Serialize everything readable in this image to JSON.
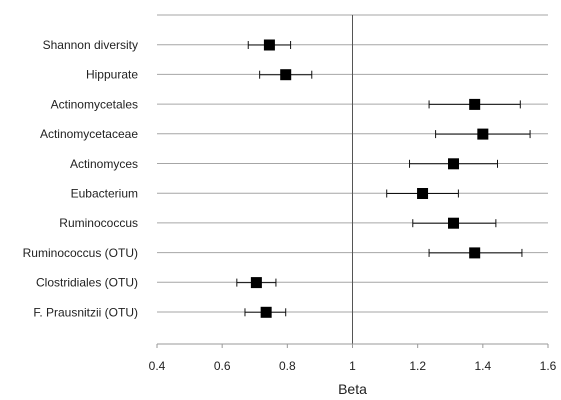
{
  "chart_data": {
    "type": "forest",
    "title": "",
    "xlabel": "Beta",
    "ylabel": "",
    "xlim": [
      0.4,
      1.6
    ],
    "x_ticks": [
      "0.4",
      "0.6",
      "0.8",
      "1",
      "1.2",
      "1.4",
      "1.6"
    ],
    "reference_line": 1,
    "grid": "horizontal",
    "categories": [
      "Shannon diversity",
      "Hippurate",
      "Actinomycetales",
      "Actinomycetaceae",
      "Actinomyces",
      "Eubacterium",
      "Ruminococcus",
      "Ruminococcus (OTU)",
      "Clostridiales (OTU)",
      "F. Prausnitzii (OTU)"
    ],
    "estimates": [
      0.745,
      0.795,
      1.375,
      1.4,
      1.31,
      1.215,
      1.31,
      1.375,
      0.705,
      0.735
    ],
    "ci_lower": [
      0.68,
      0.715,
      1.235,
      1.255,
      1.175,
      1.105,
      1.185,
      1.235,
      0.645,
      0.67
    ],
    "ci_upper": [
      0.81,
      0.875,
      1.515,
      1.545,
      1.445,
      1.325,
      1.44,
      1.52,
      0.765,
      0.795
    ]
  }
}
